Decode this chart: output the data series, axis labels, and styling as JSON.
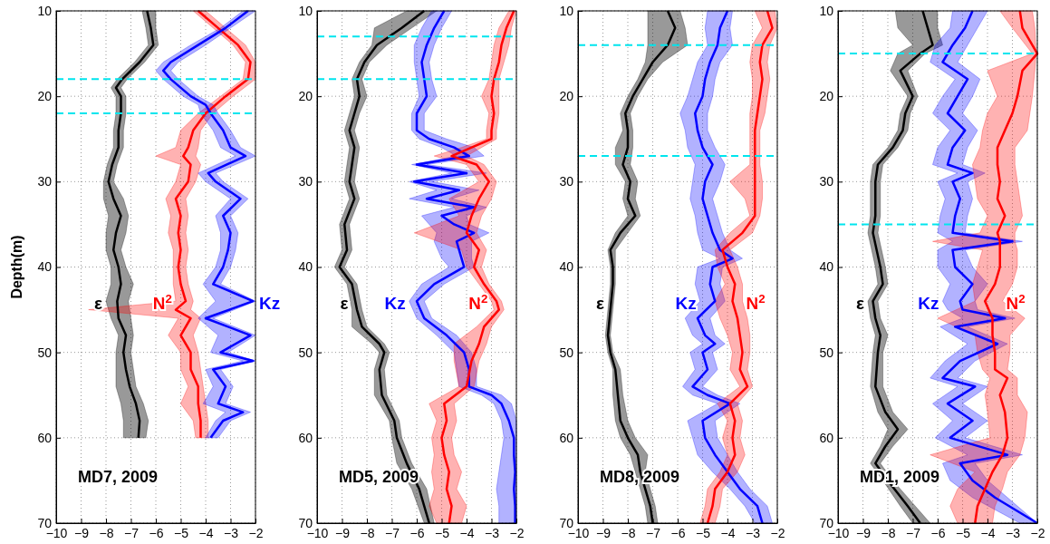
{
  "chart_data": [
    {
      "type": "line",
      "orientation": "horizontal",
      "ylabel": "Depth(m)",
      "xlim": [
        -10,
        -2
      ],
      "xticks": [
        -10,
        -9,
        -8,
        -7,
        -6,
        -5,
        -4,
        -3,
        -2
      ],
      "ylim": [
        70,
        10
      ],
      "yticks": [
        10,
        20,
        30,
        40,
        50,
        60,
        70
      ],
      "grid": true,
      "legend": false,
      "annotations": [
        "MD7, 2009"
      ],
      "ref_lines": [
        {
          "axis": "y",
          "value": 18,
          "color": "#00e5ee",
          "line_style": "dashed"
        },
        {
          "axis": "y",
          "value": 22,
          "color": "#00e5ee",
          "line_style": "dashed"
        }
      ],
      "series": [
        {
          "name": "ε",
          "color": "#000000",
          "x": [
            10,
            12,
            14,
            16,
            18,
            19,
            20,
            22,
            24,
            26,
            28,
            30,
            32,
            34,
            36,
            38,
            40,
            42,
            44,
            46,
            48,
            50,
            52,
            54,
            56,
            58,
            60
          ],
          "values": [
            -6.35,
            -6.2,
            -6.1,
            -6.65,
            -7.35,
            -7.6,
            -7.4,
            -7.4,
            -7.5,
            -7.5,
            -7.75,
            -7.9,
            -7.7,
            -7.4,
            -7.6,
            -7.7,
            -7.5,
            -7.4,
            -7.55,
            -7.5,
            -7.2,
            -7.3,
            -7.2,
            -7.05,
            -6.8,
            -6.65,
            -6.7
          ],
          "lower": [
            -6.55,
            -6.4,
            -6.3,
            -6.85,
            -7.55,
            -7.8,
            -7.6,
            -7.6,
            -7.7,
            -7.7,
            -7.95,
            -8.1,
            -8.1,
            -7.9,
            -8.0,
            -8.0,
            -7.8,
            -7.8,
            -8.0,
            -7.8,
            -7.5,
            -7.6,
            -7.6,
            -7.6,
            -7.4,
            -7.3,
            -7.3
          ],
          "upper": [
            -6.0,
            -6.0,
            -5.9,
            -6.45,
            -7.15,
            -7.4,
            -7.2,
            -7.2,
            -7.3,
            -7.3,
            -7.55,
            -7.7,
            -7.3,
            -7.1,
            -7.2,
            -7.4,
            -7.2,
            -6.9,
            -7.1,
            -7.0,
            -6.9,
            -7.0,
            -6.9,
            -6.8,
            -6.5,
            -6.3,
            -6.4
          ]
        },
        {
          "name": "N$^{2}$",
          "color": "#ff0000",
          "x": [
            10,
            12,
            14,
            16,
            18,
            20,
            22,
            24,
            26,
            27,
            28,
            30,
            32,
            34,
            36,
            38,
            40,
            42,
            44,
            45,
            46,
            48,
            50,
            52,
            54,
            56,
            58,
            60
          ],
          "values": [
            -4.3,
            -3.5,
            -2.7,
            -2.2,
            -2.3,
            -3.2,
            -4.0,
            -4.5,
            -4.7,
            -4.9,
            -4.6,
            -4.7,
            -5.2,
            -5.0,
            -5.1,
            -5.0,
            -5.1,
            -5.0,
            -4.8,
            -5.2,
            -4.6,
            -5.0,
            -4.6,
            -4.6,
            -4.3,
            -4.3,
            -4.2,
            -4.2
          ],
          "lower": [
            -4.5,
            -3.7,
            -2.9,
            -2.4,
            -2.5,
            -3.4,
            -4.3,
            -5.0,
            -5.2,
            -6.0,
            -5.0,
            -5.2,
            -5.6,
            -5.4,
            -5.5,
            -5.3,
            -5.3,
            -5.3,
            -5.2,
            -8.7,
            -5.1,
            -5.5,
            -5.0,
            -5.0,
            -4.7,
            -5.0,
            -4.5,
            -4.4
          ],
          "upper": [
            -4.0,
            -3.2,
            -2.4,
            -2.0,
            -2.0,
            -2.9,
            -3.7,
            -4.2,
            -4.3,
            -4.4,
            -4.2,
            -4.4,
            -4.8,
            -4.7,
            -4.8,
            -4.7,
            -4.8,
            -4.7,
            -4.5,
            -4.6,
            -4.2,
            -4.5,
            -4.3,
            -4.2,
            -4.1,
            -4.0,
            -3.9,
            -3.9
          ]
        },
        {
          "name": "Kz",
          "color": "#0000ff",
          "x": [
            10,
            12,
            14,
            16,
            17,
            18,
            20,
            21,
            22,
            24,
            26,
            27,
            29,
            30,
            32,
            34,
            36,
            38,
            40,
            42,
            44,
            46,
            48,
            50,
            51,
            52,
            54,
            56,
            57,
            58,
            60
          ],
          "values": [
            -2.3,
            -3.2,
            -4.3,
            -5.4,
            -5.7,
            -5.4,
            -4.6,
            -4.0,
            -3.8,
            -3.3,
            -3.0,
            -2.4,
            -3.9,
            -3.6,
            -2.6,
            -3.3,
            -3.0,
            -3.1,
            -3.3,
            -3.7,
            -2.1,
            -4.0,
            -2.2,
            -3.4,
            -2.1,
            -3.7,
            -3.2,
            -3.5,
            -2.5,
            -3.3,
            -3.8
          ],
          "lower": [
            -2.5,
            -3.4,
            -4.6,
            -5.7,
            -6.0,
            -5.7,
            -4.9,
            -4.3,
            -4.2,
            -3.7,
            -3.4,
            -2.8,
            -4.3,
            -4.0,
            -3.0,
            -3.6,
            -3.4,
            -3.4,
            -3.6,
            -4.1,
            -3.6,
            -4.3,
            -3.5,
            -3.8,
            -2.5,
            -4.0,
            -3.7,
            -4.1,
            -3.2,
            -3.6,
            -4.0
          ],
          "upper": [
            -2.0,
            -3.0,
            -4.0,
            -5.1,
            -5.4,
            -5.1,
            -4.3,
            -3.7,
            -3.5,
            -3.0,
            -2.6,
            -2.0,
            -3.6,
            -3.3,
            -2.3,
            -3.0,
            -2.7,
            -2.8,
            -3.0,
            -3.4,
            -2.0,
            -3.7,
            -2.0,
            -3.1,
            -2.0,
            -3.4,
            -2.9,
            -3.2,
            -2.2,
            -3.0,
            -3.5
          ]
        }
      ]
    },
    {
      "type": "line",
      "orientation": "horizontal",
      "xlim": [
        -10,
        -2
      ],
      "xticks": [
        -10,
        -9,
        -8,
        -7,
        -6,
        -5,
        -4,
        -3,
        -2
      ],
      "ylim": [
        70,
        10
      ],
      "yticks": [
        10,
        20,
        30,
        40,
        50,
        60,
        70
      ],
      "grid": true,
      "legend": false,
      "annotations": [
        "MD5, 2009"
      ],
      "ref_lines": [
        {
          "axis": "y",
          "value": 13,
          "color": "#00e5ee",
          "line_style": "dashed"
        },
        {
          "axis": "y",
          "value": 18,
          "color": "#00e5ee",
          "line_style": "dashed"
        }
      ],
      "series": [
        {
          "name": "ε",
          "color": "#000000",
          "x": [
            10,
            12,
            14,
            16,
            18,
            20,
            22,
            24,
            26,
            28,
            30,
            32,
            35,
            38,
            40,
            42,
            45,
            47,
            49,
            50,
            52,
            55,
            58,
            60,
            63,
            66,
            70
          ],
          "values": [
            -5.7,
            -6.6,
            -7.6,
            -8.1,
            -8.4,
            -8.3,
            -8.5,
            -8.7,
            -8.5,
            -8.6,
            -8.7,
            -8.5,
            -8.9,
            -8.8,
            -9.1,
            -8.6,
            -8.4,
            -8.2,
            -7.5,
            -7.3,
            -7.5,
            -7.4,
            -6.9,
            -6.8,
            -6.4,
            -5.9,
            -5.5
          ],
          "lower": [
            -6.4,
            -7.7,
            -7.8,
            -8.3,
            -8.6,
            -8.5,
            -8.7,
            -8.9,
            -8.7,
            -8.8,
            -8.9,
            -8.7,
            -9.1,
            -9.0,
            -9.3,
            -8.8,
            -8.6,
            -8.6,
            -7.8,
            -7.5,
            -7.7,
            -7.7,
            -7.1,
            -7.0,
            -6.8,
            -6.2,
            -5.7
          ],
          "upper": [
            -5.2,
            -6.2,
            -7.2,
            -7.9,
            -8.2,
            -8.0,
            -8.3,
            -8.5,
            -8.3,
            -8.4,
            -8.5,
            -8.3,
            -8.7,
            -8.6,
            -8.9,
            -8.4,
            -8.2,
            -8.0,
            -7.3,
            -7.1,
            -7.3,
            -7.2,
            -6.7,
            -6.6,
            -6.2,
            -5.6,
            -5.3
          ]
        },
        {
          "name": "Kz",
          "color": "#0000ff",
          "x": [
            10,
            12,
            14,
            16,
            18,
            20,
            22,
            24,
            25,
            26,
            27,
            28,
            29,
            30,
            31,
            32,
            33,
            34,
            35,
            36,
            37,
            39,
            40,
            42,
            44,
            46,
            48,
            50,
            52,
            54,
            55,
            56,
            58,
            60,
            62,
            64,
            66,
            68,
            70
          ],
          "values": [
            -4.9,
            -5.3,
            -5.6,
            -5.8,
            -5.7,
            -5.6,
            -6.0,
            -6.0,
            -5.5,
            -4.5,
            -3.9,
            -6.0,
            -4.0,
            -6.1,
            -4.3,
            -5.6,
            -3.7,
            -5.0,
            -4.5,
            -3.7,
            -4.4,
            -4.2,
            -4.1,
            -5.3,
            -6.0,
            -5.7,
            -4.8,
            -4.1,
            -3.9,
            -3.9,
            -3.0,
            -2.6,
            -2.3,
            -2.1,
            -2.1,
            -2.05,
            -2.1,
            -2.05,
            -2.05
          ],
          "lower": [
            -5.4,
            -5.8,
            -6.1,
            -6.1,
            -6.0,
            -5.9,
            -6.2,
            -6.2,
            -5.9,
            -5.0,
            -4.4,
            -6.2,
            -4.6,
            -6.3,
            -5.2,
            -6.3,
            -4.5,
            -5.8,
            -5.5,
            -5.2,
            -5.3,
            -5.0,
            -4.7,
            -5.8,
            -6.3,
            -6.0,
            -5.2,
            -4.5,
            -4.4,
            -4.3,
            -3.4,
            -2.9,
            -2.6,
            -2.5,
            -2.6,
            -2.7,
            -2.8,
            -2.7,
            -2.7
          ],
          "upper": [
            -4.6,
            -5.0,
            -5.3,
            -5.5,
            -5.4,
            -5.2,
            -5.7,
            -5.7,
            -4.8,
            -3.7,
            -3.3,
            -5.6,
            -3.2,
            -5.4,
            -3.5,
            -4.6,
            -3.2,
            -4.0,
            -3.9,
            -3.1,
            -3.8,
            -3.8,
            -3.7,
            -4.9,
            -5.7,
            -5.4,
            -4.4,
            -3.8,
            -3.6,
            -3.6,
            -2.6,
            -2.2,
            -2.0,
            -2.0,
            -2.0,
            -2.0,
            -2.0,
            -2.0,
            -2.0
          ]
        },
        {
          "name": "N$^{2}$",
          "color": "#ff0000",
          "x": [
            10,
            12,
            14,
            16,
            18,
            20,
            22,
            24,
            25,
            26,
            27,
            28,
            30,
            32,
            34,
            36,
            38,
            40,
            42,
            44,
            45,
            47,
            49,
            51,
            54,
            56,
            58,
            60,
            62,
            64,
            66,
            68,
            70
          ],
          "values": [
            -2.1,
            -2.4,
            -2.6,
            -2.7,
            -2.9,
            -3.0,
            -2.9,
            -3.0,
            -3.0,
            -3.8,
            -4.6,
            -3.6,
            -3.1,
            -3.5,
            -3.8,
            -4.0,
            -3.5,
            -3.7,
            -3.3,
            -2.8,
            -2.7,
            -3.3,
            -3.5,
            -3.8,
            -4.0,
            -4.9,
            -4.8,
            -5.0,
            -4.9,
            -4.7,
            -4.8,
            -4.6,
            -4.7
          ],
          "lower": [
            -2.3,
            -2.7,
            -2.9,
            -3.0,
            -3.1,
            -3.4,
            -3.1,
            -3.2,
            -3.2,
            -4.2,
            -5.3,
            -4.0,
            -3.5,
            -4.7,
            -4.3,
            -6.1,
            -4.2,
            -4.0,
            -3.5,
            -3.0,
            -2.9,
            -3.6,
            -4.5,
            -4.5,
            -4.3,
            -5.5,
            -5.2,
            -5.4,
            -5.3,
            -5.4,
            -5.3,
            -5.5,
            -5.2
          ],
          "upper": [
            -2.0,
            -2.2,
            -2.3,
            -2.5,
            -2.7,
            -2.7,
            -2.7,
            -2.8,
            -2.8,
            -3.4,
            -4.0,
            -3.3,
            -2.8,
            -3.0,
            -3.4,
            -3.6,
            -3.2,
            -3.4,
            -3.1,
            -2.6,
            -2.5,
            -3.0,
            -3.2,
            -3.5,
            -3.7,
            -4.5,
            -4.4,
            -4.6,
            -4.5,
            -4.2,
            -4.4,
            -4.0,
            -4.2
          ]
        }
      ]
    },
    {
      "type": "line",
      "orientation": "horizontal",
      "xlim": [
        -10,
        -2
      ],
      "xticks": [
        -10,
        -9,
        -8,
        -7,
        -6,
        -5,
        -4,
        -3,
        -2
      ],
      "ylim": [
        70,
        10
      ],
      "yticks": [
        10,
        20,
        30,
        40,
        50,
        60,
        70
      ],
      "grid": true,
      "legend": false,
      "annotations": [
        "MD8, 2009"
      ],
      "ref_lines": [
        {
          "axis": "y",
          "value": 14,
          "color": "#00e5ee",
          "line_style": "dashed"
        },
        {
          "axis": "y",
          "value": 27,
          "color": "#00e5ee",
          "line_style": "dashed"
        }
      ],
      "series": [
        {
          "name": "ε",
          "color": "#000000",
          "x": [
            10,
            12,
            14,
            16,
            18,
            20,
            22,
            24,
            26,
            28,
            30,
            32,
            34,
            36,
            38,
            40,
            42,
            45,
            48,
            50,
            52,
            55,
            58,
            60,
            62,
            64,
            66,
            68,
            70
          ],
          "values": [
            -6.4,
            -6.1,
            -6.4,
            -7.0,
            -7.4,
            -7.8,
            -8.1,
            -8.0,
            -8.0,
            -8.2,
            -7.9,
            -8.0,
            -7.7,
            -8.3,
            -8.7,
            -8.6,
            -8.6,
            -8.7,
            -8.8,
            -8.7,
            -8.5,
            -8.4,
            -8.3,
            -8.0,
            -7.6,
            -7.5,
            -7.3,
            -7.1,
            -7.0
          ],
          "lower": [
            -7.2,
            -7.2,
            -7.2,
            -7.3,
            -7.6,
            -8.0,
            -8.3,
            -8.2,
            -8.5,
            -8.5,
            -8.1,
            -8.2,
            -8.0,
            -8.5,
            -8.8,
            -8.7,
            -8.7,
            -8.8,
            -8.9,
            -8.8,
            -8.6,
            -8.6,
            -8.5,
            -8.3,
            -7.9,
            -7.7,
            -7.5,
            -7.3,
            -7.2
          ],
          "upper": [
            -5.9,
            -5.7,
            -5.6,
            -6.6,
            -7.2,
            -7.6,
            -7.9,
            -7.8,
            -7.8,
            -7.9,
            -7.6,
            -7.7,
            -7.5,
            -8.0,
            -8.5,
            -8.5,
            -8.5,
            -8.6,
            -8.7,
            -8.6,
            -8.3,
            -8.2,
            -8.0,
            -7.7,
            -7.2,
            -7.3,
            -7.1,
            -6.9,
            -6.8
          ]
        },
        {
          "name": "Kz",
          "color": "#0000ff",
          "x": [
            10,
            12,
            14,
            16,
            18,
            20,
            22,
            24,
            26,
            28,
            30,
            32,
            34,
            36,
            38,
            39,
            40,
            42,
            44,
            46,
            48,
            49,
            50,
            52,
            54,
            55,
            56,
            58,
            60,
            62,
            64,
            66,
            68,
            70
          ],
          "values": [
            -4.0,
            -4.3,
            -4.4,
            -4.7,
            -4.9,
            -5.0,
            -5.3,
            -5.2,
            -5.0,
            -4.6,
            -4.9,
            -5.0,
            -4.8,
            -4.6,
            -4.3,
            -3.8,
            -4.6,
            -4.7,
            -4.5,
            -5.2,
            -4.9,
            -4.5,
            -5.0,
            -4.8,
            -5.4,
            -4.8,
            -3.9,
            -5.0,
            -4.9,
            -4.5,
            -4.0,
            -3.5,
            -2.8,
            -2.6
          ],
          "lower": [
            -4.8,
            -4.9,
            -4.8,
            -5.2,
            -5.4,
            -5.6,
            -5.9,
            -5.7,
            -5.6,
            -5.3,
            -5.4,
            -5.5,
            -5.3,
            -5.2,
            -5.0,
            -4.3,
            -5.2,
            -5.3,
            -5.1,
            -5.7,
            -5.4,
            -5.0,
            -5.5,
            -5.3,
            -5.8,
            -5.4,
            -4.4,
            -5.6,
            -5.4,
            -5.2,
            -4.6,
            -3.9,
            -3.3,
            -2.9
          ],
          "upper": [
            -3.8,
            -3.9,
            -3.8,
            -4.3,
            -4.5,
            -4.6,
            -4.8,
            -4.8,
            -4.5,
            -4.1,
            -4.3,
            -4.6,
            -4.4,
            -4.2,
            -3.9,
            -3.4,
            -4.2,
            -4.3,
            -4.1,
            -4.7,
            -4.5,
            -4.1,
            -4.6,
            -4.4,
            -5.0,
            -4.4,
            -3.5,
            -4.5,
            -4.4,
            -4.0,
            -3.6,
            -3.1,
            -2.4,
            -2.2
          ]
        },
        {
          "name": "N$^{2}$",
          "color": "#ff0000",
          "x": [
            10,
            12,
            14,
            16,
            18,
            20,
            22,
            24,
            26,
            28,
            30,
            32,
            34,
            36,
            38,
            40,
            42,
            44,
            46,
            48,
            50,
            52,
            54,
            56,
            58,
            60,
            62,
            64,
            66,
            68,
            70
          ],
          "values": [
            -2.4,
            -2.2,
            -2.6,
            -2.7,
            -2.6,
            -2.7,
            -2.8,
            -2.9,
            -2.9,
            -2.9,
            -2.9,
            -2.9,
            -2.9,
            -3.4,
            -4.2,
            -4.0,
            -3.7,
            -3.8,
            -3.6,
            -3.5,
            -3.4,
            -3.5,
            -3.2,
            -3.9,
            -3.7,
            -3.8,
            -3.7,
            -4.0,
            -4.5,
            -4.6,
            -4.8
          ],
          "lower": [
            -2.9,
            -2.6,
            -3.0,
            -3.1,
            -3.0,
            -3.0,
            -3.1,
            -3.1,
            -3.1,
            -3.1,
            -3.9,
            -3.3,
            -3.1,
            -3.9,
            -4.5,
            -4.4,
            -4.1,
            -4.5,
            -4.3,
            -4.0,
            -3.8,
            -3.9,
            -3.5,
            -4.4,
            -4.0,
            -4.2,
            -4.0,
            -4.3,
            -4.8,
            -4.9,
            -5.1
          ],
          "upper": [
            -2.1,
            -2.0,
            -2.3,
            -2.4,
            -2.3,
            -2.4,
            -2.5,
            -2.7,
            -2.7,
            -2.7,
            -2.6,
            -2.6,
            -2.7,
            -3.0,
            -3.9,
            -3.6,
            -3.4,
            -3.4,
            -3.2,
            -3.1,
            -3.1,
            -3.2,
            -3.0,
            -3.6,
            -3.4,
            -3.5,
            -3.3,
            -3.6,
            -4.2,
            -4.3,
            -4.5
          ]
        }
      ]
    },
    {
      "type": "line",
      "orientation": "horizontal",
      "xlim": [
        -10,
        -2
      ],
      "xticks": [
        -10,
        -9,
        -8,
        -7,
        -6,
        -5,
        -4,
        -3,
        -2
      ],
      "ylim": [
        70,
        10
      ],
      "yticks": [
        10,
        20,
        30,
        40,
        50,
        60,
        70
      ],
      "grid": true,
      "legend": false,
      "annotations": [
        "MD1, 2009"
      ],
      "ref_lines": [
        {
          "axis": "y",
          "value": 15,
          "color": "#00e5ee",
          "line_style": "dashed"
        },
        {
          "axis": "y",
          "value": 35,
          "color": "#00e5ee",
          "line_style": "dashed"
        }
      ],
      "series": [
        {
          "name": "ε",
          "color": "#000000",
          "x": [
            10,
            12,
            14,
            15,
            17,
            20,
            22,
            24,
            26,
            28,
            30,
            34,
            36,
            40,
            42,
            44,
            46,
            48,
            50,
            54,
            57,
            59,
            61,
            63,
            65,
            68,
            70
          ],
          "values": [
            -6.6,
            -6.4,
            -6.2,
            -6.7,
            -7.5,
            -7.0,
            -7.3,
            -7.4,
            -7.8,
            -8.4,
            -8.5,
            -8.5,
            -8.6,
            -8.3,
            -8.2,
            -8.6,
            -8.5,
            -8.3,
            -8.4,
            -8.5,
            -8.1,
            -7.6,
            -8.1,
            -8.5,
            -8.0,
            -7.2,
            -6.7
          ],
          "lower": [
            -7.7,
            -7.6,
            -7.0,
            -7.6,
            -7.9,
            -7.2,
            -7.5,
            -7.6,
            -8.0,
            -8.6,
            -8.7,
            -8.7,
            -8.8,
            -8.5,
            -8.4,
            -8.8,
            -8.7,
            -8.5,
            -8.6,
            -8.7,
            -8.4,
            -8.0,
            -8.3,
            -8.7,
            -8.2,
            -7.5,
            -7.0
          ],
          "upper": [
            -6.0,
            -6.0,
            -5.8,
            -6.5,
            -7.2,
            -6.8,
            -7.1,
            -7.2,
            -7.6,
            -8.2,
            -8.3,
            -8.3,
            -8.4,
            -8.1,
            -8.0,
            -8.4,
            -8.3,
            -8.0,
            -8.2,
            -8.2,
            -7.8,
            -7.2,
            -7.8,
            -8.3,
            -7.8,
            -6.9,
            -6.3
          ]
        },
        {
          "name": "Kz",
          "color": "#0000ff",
          "x": [
            10,
            12,
            14,
            16,
            18,
            20,
            22,
            24,
            26,
            28,
            29,
            30,
            32,
            34,
            36,
            37,
            38,
            40,
            42,
            44,
            45,
            46,
            47,
            49,
            51,
            53,
            54,
            56,
            58,
            60,
            62,
            63,
            65,
            67,
            70
          ],
          "values": [
            -4.6,
            -4.9,
            -5.4,
            -5.8,
            -4.8,
            -5.2,
            -5.6,
            -4.9,
            -5.4,
            -5.6,
            -4.6,
            -5.4,
            -5.1,
            -5.3,
            -5.4,
            -3.0,
            -5.4,
            -5.3,
            -4.6,
            -5.1,
            -5.0,
            -3.3,
            -5.3,
            -3.6,
            -5.1,
            -5.8,
            -4.5,
            -5.6,
            -4.6,
            -5.5,
            -3.2,
            -5.1,
            -4.6,
            -3.7,
            -2.0
          ],
          "lower": [
            -5.4,
            -5.5,
            -6.1,
            -6.3,
            -5.3,
            -5.8,
            -6.2,
            -5.5,
            -6.0,
            -6.2,
            -5.2,
            -6.0,
            -5.7,
            -5.9,
            -6.0,
            -5.4,
            -6.0,
            -6.0,
            -5.5,
            -5.8,
            -5.6,
            -5.0,
            -5.9,
            -4.8,
            -5.7,
            -6.3,
            -5.2,
            -6.2,
            -5.4,
            -6.1,
            -4.8,
            -5.8,
            -5.5,
            -4.6,
            -2.7
          ],
          "upper": [
            -4.0,
            -4.4,
            -4.8,
            -5.2,
            -4.3,
            -4.6,
            -5.0,
            -4.4,
            -4.8,
            -5.0,
            -4.1,
            -4.8,
            -4.6,
            -4.8,
            -4.9,
            -2.6,
            -4.9,
            -4.6,
            -4.0,
            -4.5,
            -4.4,
            -2.9,
            -4.8,
            -3.2,
            -4.5,
            -5.2,
            -4.0,
            -5.0,
            -4.0,
            -4.9,
            -2.6,
            -4.5,
            -4.0,
            -3.2,
            -2.0
          ]
        },
        {
          "name": "N$^{2}$",
          "color": "#ff0000",
          "x": [
            10,
            12,
            15,
            17,
            20,
            22,
            24,
            26,
            28,
            30,
            32,
            34,
            36,
            37,
            38,
            40,
            42,
            44,
            46,
            48,
            50,
            52,
            53,
            55,
            57,
            60,
            62,
            64,
            66,
            68,
            70
          ],
          "values": [
            -2.7,
            -2.6,
            -2.0,
            -2.6,
            -2.8,
            -3.0,
            -3.3,
            -3.6,
            -3.6,
            -3.5,
            -3.6,
            -3.3,
            -3.6,
            -3.5,
            -3.5,
            -3.5,
            -3.7,
            -4.1,
            -3.8,
            -3.8,
            -3.7,
            -3.7,
            -3.2,
            -3.5,
            -3.3,
            -3.2,
            -3.4,
            -3.8,
            -4.1,
            -4.4,
            -4.5
          ],
          "lower": [
            -3.5,
            -3.0,
            -2.2,
            -4.0,
            -3.6,
            -4.0,
            -4.2,
            -4.3,
            -4.6,
            -4.5,
            -4.4,
            -4.0,
            -4.3,
            -6.2,
            -4.2,
            -4.4,
            -4.6,
            -4.5,
            -6.0,
            -4.5,
            -4.4,
            -4.2,
            -3.9,
            -4.1,
            -4.0,
            -3.9,
            -6.3,
            -4.5,
            -5.2,
            -5.5,
            -5.2
          ],
          "upper": [
            -2.2,
            -2.1,
            -2.05,
            -2.1,
            -2.2,
            -2.3,
            -2.4,
            -2.9,
            -2.9,
            -2.8,
            -2.7,
            -2.6,
            -2.9,
            -2.9,
            -2.8,
            -2.8,
            -3.0,
            -3.4,
            -2.5,
            -3.1,
            -3.1,
            -3.2,
            -2.8,
            -2.8,
            -2.4,
            -2.5,
            -2.7,
            -3.2,
            -3.4,
            -3.7,
            -3.8
          ]
        }
      ]
    }
  ]
}
